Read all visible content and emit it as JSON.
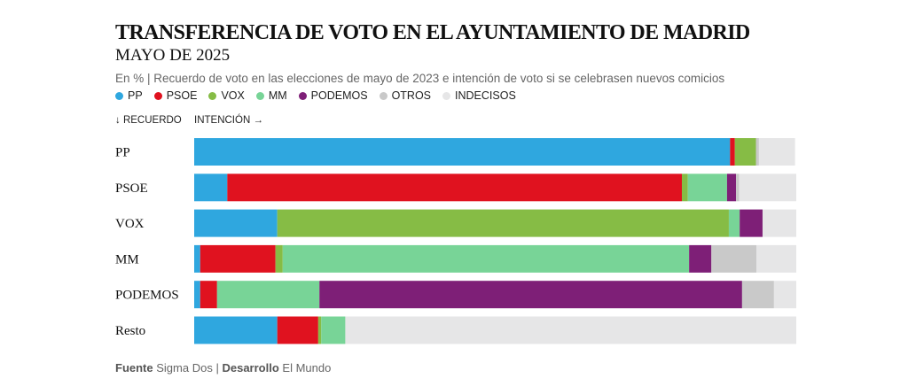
{
  "header": {
    "title": "TRANSFERENCIA DE VOTO EN EL AYUNTAMIENTO DE MADRID",
    "subtitle": "MAYO DE 2025",
    "note": "En % | Recuerdo de voto en las elecciones de mayo de 2023 e intención de voto si se celebrasen nuevos comicios"
  },
  "axis_hints": {
    "recuerdo": "↓ RECUERDO",
    "intencion": "INTENCIÓN →"
  },
  "source": {
    "label_fuente": "Fuente",
    "fuente": "Sigma Dos",
    "sep": "|",
    "label_desarrollo": "Desarrollo",
    "desarrollo": "El Mundo"
  },
  "chart_data": {
    "type": "bar",
    "orientation": "horizontal",
    "stacked": true,
    "title": "TRANSFERENCIA DE VOTO EN EL AYUNTAMIENTO DE MADRID",
    "subtitle": "MAYO DE 2025",
    "unit": "%",
    "xlim": [
      0,
      100
    ],
    "categories": [
      "PP",
      "PSOE",
      "VOX",
      "MM",
      "PODEMOS",
      "Resto"
    ],
    "series": [
      {
        "name": "PP",
        "color": "#2fa7df",
        "values": [
          89.0,
          5.5,
          13.8,
          1.0,
          1.0,
          13.8
        ]
      },
      {
        "name": "PSOE",
        "color": "#e0121f",
        "values": [
          0.8,
          75.5,
          0.0,
          12.5,
          2.8,
          6.8
        ]
      },
      {
        "name": "VOX",
        "color": "#86bc45",
        "values": [
          3.5,
          1.0,
          75.0,
          1.2,
          0.0,
          0.5
        ]
      },
      {
        "name": "MM",
        "color": "#78d497",
        "values": [
          0.0,
          6.5,
          1.8,
          67.5,
          17.0,
          4.0
        ]
      },
      {
        "name": "PODEMOS",
        "color": "#7e1f77",
        "values": [
          0.0,
          1.5,
          3.8,
          3.7,
          70.2,
          0.0
        ]
      },
      {
        "name": "OTROS",
        "color": "#c9c9c9",
        "values": [
          0.5,
          0.5,
          0.0,
          7.5,
          5.3,
          0.0
        ]
      },
      {
        "name": "INDECISOS",
        "color": "#e6e6e7",
        "values": [
          6.0,
          9.5,
          5.6,
          6.6,
          3.7,
          74.9
        ]
      }
    ],
    "legend": [
      "PP",
      "PSOE",
      "VOX",
      "MM",
      "PODEMOS",
      "OTROS",
      "INDECISOS"
    ],
    "legend_position": "top"
  }
}
